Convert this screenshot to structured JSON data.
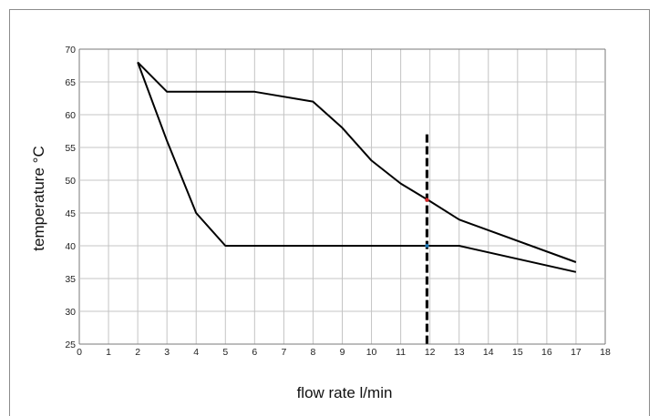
{
  "chart_data": {
    "type": "line",
    "title": "",
    "xlabel": "flow rate l/min",
    "ylabel": "temperature °C",
    "xlim": [
      0,
      18
    ],
    "ylim": [
      25,
      70
    ],
    "x_ticks": [
      0,
      1,
      2,
      3,
      4,
      5,
      6,
      7,
      8,
      9,
      10,
      11,
      12,
      13,
      14,
      15,
      16,
      17,
      18
    ],
    "y_ticks": [
      25,
      30,
      35,
      40,
      45,
      50,
      55,
      60,
      65,
      70
    ],
    "grid": true,
    "series": [
      {
        "color": "#000000",
        "points": [
          [
            2,
            68
          ],
          [
            3,
            63.5
          ],
          [
            6,
            63.5
          ],
          [
            8,
            62
          ],
          [
            9,
            58
          ],
          [
            10,
            53
          ],
          [
            11,
            49.5
          ],
          [
            12,
            46.8
          ],
          [
            13,
            44
          ],
          [
            17,
            37.5
          ]
        ]
      },
      {
        "color": "#000000",
        "points": [
          [
            2,
            68
          ],
          [
            3,
            56
          ],
          [
            4,
            45
          ],
          [
            5,
            40
          ],
          [
            13,
            40
          ],
          [
            17,
            36
          ]
        ]
      }
    ],
    "reference_line": {
      "x": 11.9,
      "y_range": [
        25,
        57
      ],
      "style": "dashed",
      "color": "#000000"
    },
    "markers": [
      {
        "x": 11.9,
        "y": 47,
        "color": "#d62728"
      },
      {
        "x": 11.9,
        "y": 40,
        "color": "#1f77b4"
      }
    ]
  }
}
